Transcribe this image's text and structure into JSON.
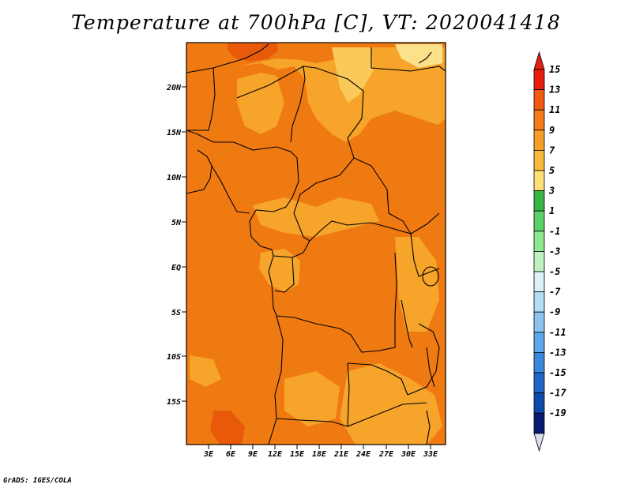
{
  "title": "Temperature at 700hPa [C], VT: 2020041418",
  "credit": "GrADS: IGES/COLA",
  "colors": {
    "background": "#ffffff",
    "frame": "#000000",
    "field_base": "#f07a12",
    "field_warm": "#e85a0a",
    "field_mild": "#f6a42a",
    "field_cool": "#fbc85a",
    "field_pale": "#fde08a",
    "borders": "#000000"
  },
  "map": {
    "lon_ticks": [
      "3E",
      "6E",
      "9E",
      "12E",
      "15E",
      "18E",
      "21E",
      "24E",
      "27E",
      "30E",
      "33E"
    ],
    "lat_ticks": [
      "20N",
      "15N",
      "10N",
      "5N",
      "EQ",
      "5S",
      "10S",
      "15S"
    ]
  },
  "colorbar": {
    "labels": [
      "15",
      "13",
      "11",
      "9",
      "7",
      "5",
      "3",
      "1",
      "-1",
      "-3",
      "-5",
      "-7",
      "-9",
      "-11",
      "-13",
      "-15",
      "-17",
      "-19"
    ],
    "colors": [
      "#e81e0c",
      "#f25a14",
      "#f47a1a",
      "#f79e28",
      "#fab93c",
      "#fde07a",
      "#3ab54a",
      "#5cd16a",
      "#8fe88f",
      "#bff2c0",
      "#ddf0f8",
      "#b5dcf5",
      "#8cc4ee",
      "#5fa6e6",
      "#3a88dc",
      "#1f66c8",
      "#104aa8",
      "#0a1a6e"
    ],
    "over_color": "#e02010",
    "under_color": "#dcdcf0"
  }
}
